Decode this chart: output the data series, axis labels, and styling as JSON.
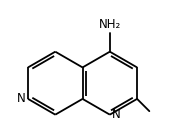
{
  "bg_color": "#ffffff",
  "line_color": "#000000",
  "line_width": 1.3,
  "doff": 0.1,
  "dsh": 0.1,
  "figsize": [
    1.84,
    1.38
  ],
  "dpi": 100,
  "label_fontsize": 8.5,
  "xlim": [
    -2.6,
    3.2
  ],
  "ylim": [
    -1.0,
    2.9
  ]
}
